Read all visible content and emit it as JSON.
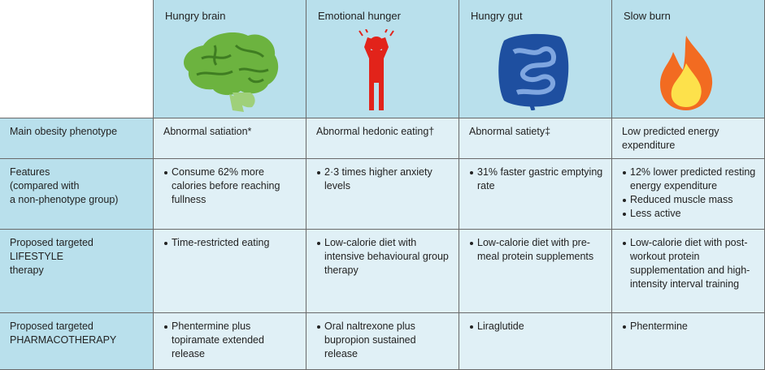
{
  "header": {
    "columns": [
      "Hungry brain",
      "Emotional hunger",
      "Hungry gut",
      "Slow burn"
    ]
  },
  "rows": [
    {
      "label": [
        "Main obesity phenotype"
      ],
      "bulleted": false,
      "cells": [
        [
          "Abnormal satiation*"
        ],
        [
          "Abnormal hedonic eating†"
        ],
        [
          "Abnormal satiety‡"
        ],
        [
          "Low predicted energy expenditure"
        ]
      ]
    },
    {
      "label": [
        "Features",
        "(compared with",
        "a non-phenotype group)"
      ],
      "bulleted": true,
      "cells": [
        [
          "Consume 62% more calories before reaching fullness"
        ],
        [
          "2·3 times higher anxiety levels"
        ],
        [
          "31% faster gastric emptying rate"
        ],
        [
          "12% lower predicted resting energy expenditure",
          "Reduced muscle mass",
          "Less active"
        ]
      ]
    },
    {
      "label": [
        "Proposed targeted LIFESTYLE",
        "therapy"
      ],
      "bulleted": true,
      "cells": [
        [
          "Time-restricted eating"
        ],
        [
          "Low-calorie diet with intensive behavioural group therapy"
        ],
        [
          "Low-calorie diet with pre-meal protein supplements"
        ],
        [
          "Low-calorie diet with post-workout protein supplementation and high-intensity interval training"
        ]
      ]
    },
    {
      "label": [
        "Proposed targeted",
        "PHARMACOTHERAPY"
      ],
      "bulleted": true,
      "cells": [
        [
          "Phentermine plus topiramate extended release"
        ],
        [
          "Oral naltrexone plus bupropion sustained release"
        ],
        [
          "Liraglutide"
        ],
        [
          "Phentermine"
        ]
      ]
    }
  ]
}
